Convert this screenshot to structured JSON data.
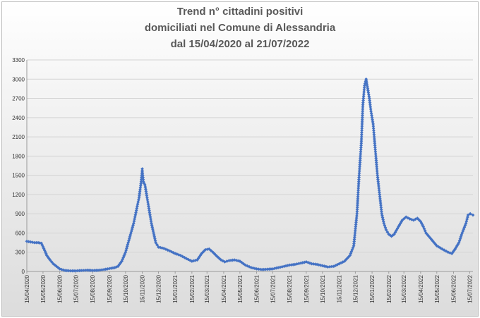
{
  "chart_data": {
    "type": "line",
    "title_lines": [
      "Trend n° cittadini positivi",
      "domiciliati nel Comune di Alessandria",
      "dal 15/04/2020 al 21/07/2022"
    ],
    "xlabel": "",
    "ylabel": "",
    "ylim": [
      0,
      3300
    ],
    "yticks": [
      "0",
      "300",
      "600",
      "900",
      "1200",
      "1500",
      "1800",
      "2100",
      "2400",
      "2700",
      "3000",
      "3300"
    ],
    "xlim": [
      "15/04/2020",
      "21/07/2022"
    ],
    "xticks": [
      "15/04/2020",
      "15/05/2020",
      "15/06/2020",
      "15/07/2020",
      "15/08/2020",
      "15/09/2020",
      "15/10/2020",
      "15/11/2020",
      "15/12/2020",
      "15/01/2021",
      "15/02/2021",
      "15/03/2021",
      "15/04/2021",
      "15/05/2021",
      "15/06/2021",
      "15/07/2021",
      "15/08/2021",
      "15/09/2021",
      "15/10/2021",
      "15/11/2021",
      "15/12/2021",
      "15/01/2022",
      "15/02/2022",
      "15/03/2022",
      "15/04/2022",
      "15/05/2022",
      "15/06/2022",
      "15/07/2022"
    ],
    "grid": true,
    "legend": "none",
    "series_color": "#4472c4",
    "series": [
      {
        "x": [
          "15/04/2020",
          "22/04/2020",
          "29/04/2020",
          "06/05/2020",
          "12/05/2020",
          "18/05/2020",
          "22/05/2020",
          "28/05/2020",
          "03/06/2020",
          "09/06/2020",
          "15/06/2020",
          "25/06/2020",
          "05/07/2020",
          "15/07/2020",
          "25/07/2020",
          "05/08/2020",
          "15/08/2020",
          "25/08/2020",
          "05/09/2020",
          "15/09/2020",
          "25/09/2020",
          "01/10/2020",
          "08/10/2020",
          "15/10/2020",
          "20/10/2020",
          "25/10/2020",
          "30/10/2020",
          "04/11/2020",
          "09/11/2020",
          "13/11/2020",
          "15/11/2020",
          "17/11/2020",
          "20/11/2020",
          "24/11/2020",
          "28/11/2020",
          "02/12/2020",
          "06/12/2020",
          "10/12/2020",
          "15/12/2020",
          "25/12/2020",
          "05/01/2021",
          "15/01/2021",
          "25/01/2021",
          "05/02/2021",
          "15/02/2021",
          "25/02/2021",
          "05/03/2021",
          "12/03/2021",
          "19/03/2021",
          "26/03/2021",
          "02/04/2021",
          "10/04/2021",
          "17/04/2021",
          "25/04/2021",
          "05/05/2021",
          "15/05/2021",
          "25/05/2021",
          "05/06/2021",
          "15/06/2021",
          "25/06/2021",
          "05/07/2021",
          "15/07/2021",
          "25/07/2021",
          "05/08/2021",
          "15/08/2021",
          "25/08/2021",
          "05/09/2021",
          "15/09/2021",
          "25/09/2021",
          "05/10/2021",
          "15/10/2021",
          "25/10/2021",
          "05/11/2021",
          "15/11/2021",
          "25/11/2021",
          "05/12/2021",
          "12/12/2021",
          "18/12/2021",
          "22/12/2021",
          "26/12/2021",
          "29/12/2021",
          "01/01/2022",
          "04/01/2022",
          "07/01/2022",
          "10/01/2022",
          "13/01/2022",
          "17/01/2022",
          "21/01/2022",
          "25/01/2022",
          "29/01/2022",
          "02/02/2022",
          "06/02/2022",
          "10/02/2022",
          "15/02/2022",
          "20/02/2022",
          "25/02/2022",
          "05/03/2022",
          "12/03/2022",
          "19/03/2022",
          "26/03/2022",
          "02/04/2022",
          "09/04/2022",
          "15/04/2022",
          "20/04/2022",
          "25/04/2022",
          "05/05/2022",
          "15/05/2022",
          "25/05/2022",
          "05/06/2022",
          "12/06/2022",
          "18/06/2022",
          "25/06/2022",
          "01/07/2022",
          "08/07/2022",
          "12/07/2022",
          "16/07/2022",
          "21/07/2022"
        ],
        "values": [
          470,
          460,
          450,
          450,
          440,
          330,
          250,
          180,
          120,
          80,
          40,
          15,
          10,
          10,
          15,
          20,
          15,
          18,
          30,
          45,
          60,
          80,
          160,
          300,
          450,
          600,
          750,
          950,
          1150,
          1400,
          1600,
          1400,
          1350,
          1150,
          950,
          750,
          600,
          450,
          380,
          360,
          320,
          280,
          250,
          200,
          160,
          180,
          280,
          340,
          350,
          300,
          240,
          180,
          150,
          170,
          180,
          160,
          100,
          60,
          40,
          30,
          35,
          40,
          60,
          80,
          100,
          110,
          130,
          150,
          120,
          110,
          90,
          70,
          80,
          120,
          160,
          250,
          400,
          900,
          1500,
          2000,
          2600,
          2900,
          3000,
          2850,
          2700,
          2500,
          2300,
          1900,
          1500,
          1200,
          900,
          750,
          650,
          580,
          550,
          580,
          700,
          800,
          850,
          820,
          800,
          830,
          780,
          700,
          600,
          500,
          400,
          350,
          300,
          280,
          350,
          450,
          600,
          750,
          880,
          900,
          880
        ]
      }
    ]
  }
}
